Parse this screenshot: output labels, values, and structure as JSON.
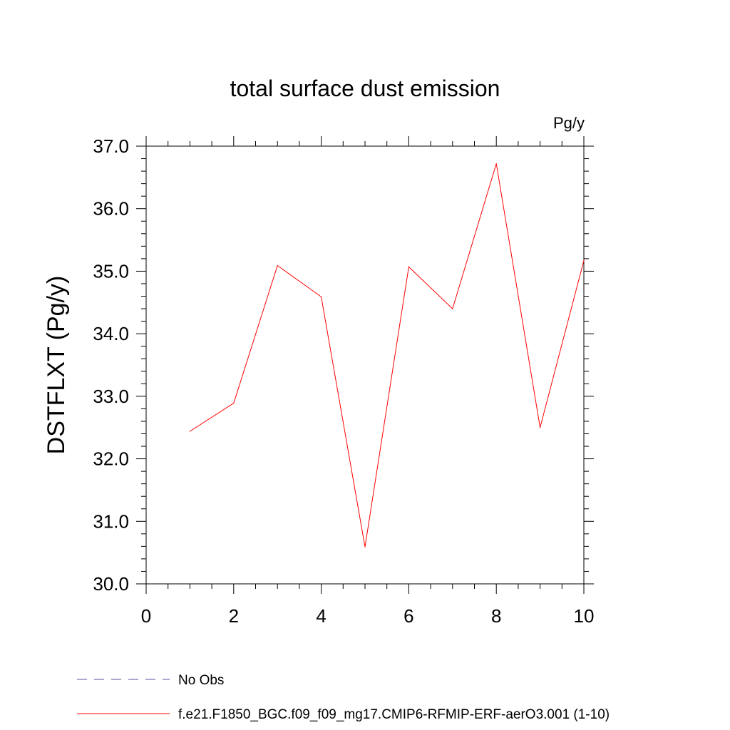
{
  "chart_data": {
    "type": "line",
    "title": "total surface dust emission",
    "units_label": "Pg/y",
    "ylabel": "DSTFLXT  (Pg/y)",
    "xlabel": "",
    "xlim": [
      0,
      10
    ],
    "ylim": [
      30.0,
      37.0
    ],
    "x_ticks": [
      0,
      2,
      4,
      6,
      8,
      10
    ],
    "x_tick_labels": [
      "0",
      "2",
      "4",
      "6",
      "8",
      "10"
    ],
    "y_ticks": [
      30.0,
      31.0,
      32.0,
      33.0,
      34.0,
      35.0,
      36.0,
      37.0
    ],
    "y_tick_labels": [
      "30.0",
      "31.0",
      "32.0",
      "33.0",
      "34.0",
      "35.0",
      "36.0",
      "37.0"
    ],
    "grid": false,
    "legend_position": "bottom-left",
    "series": [
      {
        "name": "f.e21.F1850_BGC.f09_f09_mg17.CMIP6-RFMIP-ERF-aerO3.001 (1-10)",
        "color": "#ff0000",
        "style": "solid",
        "x": [
          1,
          2,
          3,
          4,
          5,
          6,
          7,
          8,
          9,
          10
        ],
        "y": [
          32.44,
          32.89,
          35.09,
          34.59,
          30.59,
          35.07,
          34.4,
          36.72,
          32.5,
          35.17
        ]
      }
    ],
    "legend": [
      {
        "label": "No Obs",
        "color": "#5a4f9e",
        "style": "dashed"
      },
      {
        "label": "f.e21.F1850_BGC.f09_f09_mg17.CMIP6-RFMIP-ERF-aerO3.001 (1-10)",
        "color": "#ff0000",
        "style": "solid"
      }
    ]
  }
}
